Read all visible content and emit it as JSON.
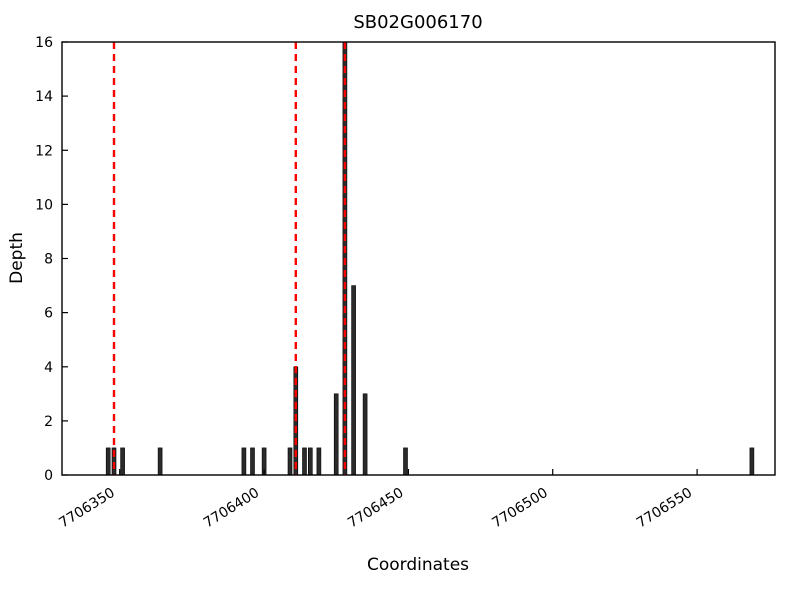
{
  "figure": {
    "title": "SB02G006170",
    "xlabel": "Coordinates",
    "ylabel": "Depth"
  },
  "chart_data": {
    "type": "bar",
    "title": "SB02G006170",
    "xlabel": "Coordinates",
    "ylabel": "Depth",
    "xlim": [
      7706330,
      7706577
    ],
    "ylim": [
      0,
      16
    ],
    "x_ticks": [
      7706350,
      7706400,
      7706450,
      7706500,
      7706550
    ],
    "y_ticks": [
      0,
      2,
      4,
      6,
      8,
      10,
      12,
      14,
      16
    ],
    "grid": false,
    "legend": "none",
    "bar_color": "#2b2b2b",
    "bar_edge_color": "#000000",
    "bars": [
      {
        "x": 7706346,
        "depth": 1
      },
      {
        "x": 7706348,
        "depth": 1
      },
      {
        "x": 7706351,
        "depth": 1
      },
      {
        "x": 7706364,
        "depth": 1
      },
      {
        "x": 7706393,
        "depth": 1
      },
      {
        "x": 7706396,
        "depth": 1
      },
      {
        "x": 7706400,
        "depth": 1
      },
      {
        "x": 7706409,
        "depth": 1
      },
      {
        "x": 7706411,
        "depth": 4
      },
      {
        "x": 7706414,
        "depth": 1
      },
      {
        "x": 7706416,
        "depth": 1
      },
      {
        "x": 7706419,
        "depth": 1
      },
      {
        "x": 7706425,
        "depth": 3
      },
      {
        "x": 7706428,
        "depth": 16
      },
      {
        "x": 7706431,
        "depth": 7
      },
      {
        "x": 7706435,
        "depth": 3
      },
      {
        "x": 7706449,
        "depth": 1
      },
      {
        "x": 7706569,
        "depth": 1
      }
    ],
    "marker_lines": {
      "style": "dashed",
      "color": "#ff0000",
      "x": [
        7706348,
        7706411,
        7706428
      ]
    }
  }
}
